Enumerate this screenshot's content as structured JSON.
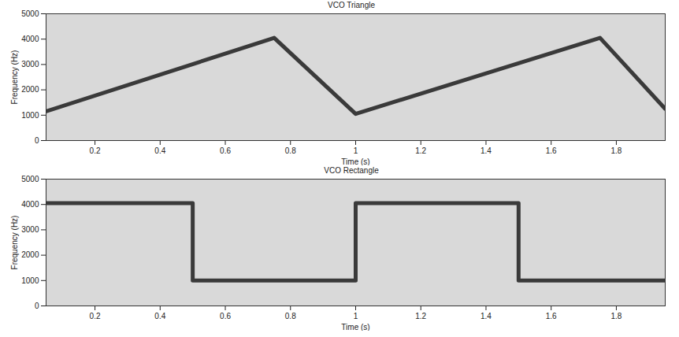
{
  "chart_data": [
    {
      "type": "line",
      "title": "VCO Triangle",
      "x_label": "Time (s)",
      "y_label": "Frequency (Hz)",
      "x": [
        0.05,
        0.75,
        1.0,
        1.75,
        1.95
      ],
      "values": [
        1150,
        4050,
        1050,
        4050,
        1250
      ],
      "color": "#3a3a3a",
      "xlim": [
        0.05,
        1.95
      ],
      "ylim": [
        0,
        5000
      ],
      "xticks": [
        0.2,
        0.4,
        0.6,
        0.8,
        1,
        1.2,
        1.4,
        1.6,
        1.8
      ],
      "yticks": [
        0,
        1000,
        2000,
        3000,
        4000,
        5000
      ],
      "grid": false
    },
    {
      "type": "line",
      "title": "VCO Rectangle",
      "x_label": "Time (s)",
      "y_label": "Frequency (Hz)",
      "x": [
        0.05,
        0.5,
        0.5,
        1.0,
        1.0,
        1.5,
        1.5,
        1.95
      ],
      "values": [
        4050,
        4050,
        1000,
        1000,
        4050,
        4050,
        1000,
        1000
      ],
      "color": "#3a3a3a",
      "xlim": [
        0.05,
        1.95
      ],
      "ylim": [
        0,
        5000
      ],
      "xticks": [
        0.2,
        0.4,
        0.6,
        0.8,
        1,
        1.2,
        1.4,
        1.6,
        1.8
      ],
      "yticks": [
        0,
        1000,
        2000,
        3000,
        4000,
        5000
      ],
      "grid": false
    }
  ]
}
